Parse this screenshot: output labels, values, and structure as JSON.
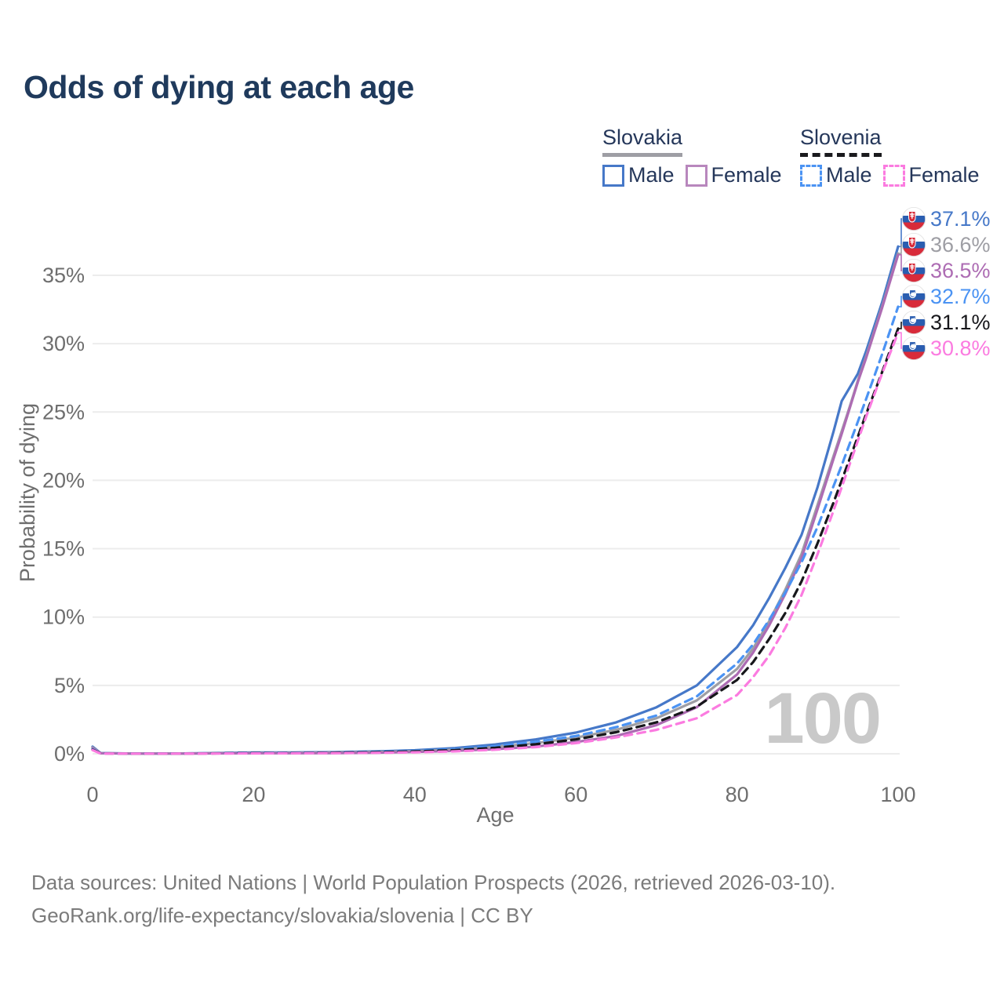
{
  "title": "Odds of dying at each age",
  "colors": {
    "title_text": "#1f3a5c",
    "legend_text": "#25375a",
    "grid": "#ececec",
    "axis_text": "#6e6e6e",
    "watermark": "#c9c9c9",
    "footer_text": "#7b7b7b"
  },
  "legend": {
    "groups": [
      {
        "country": "Slovakia",
        "line_style": "solid",
        "line_color": "#9e9ea4",
        "items": [
          {
            "label": "Male",
            "color": "#4678c8",
            "box_style": "solid"
          },
          {
            "label": "Female",
            "color": "#b887bd",
            "box_style": "solid"
          }
        ]
      },
      {
        "country": "Slovenia",
        "line_style": "dashed",
        "line_color": "#1a1a1d",
        "items": [
          {
            "label": "Male",
            "color": "#4b93f3",
            "box_style": "dashed"
          },
          {
            "label": "Female",
            "color": "#fb7be0",
            "box_style": "dashed"
          }
        ]
      }
    ]
  },
  "chart_data": {
    "type": "line",
    "title": "Odds of dying at each age",
    "xlabel": "Age",
    "ylabel": "Probability of dying",
    "xlim": [
      0,
      100
    ],
    "ylim": [
      0,
      37.5
    ],
    "x_ticks": [
      0,
      20,
      40,
      60,
      80,
      100
    ],
    "y_ticks": [
      0,
      5,
      10,
      15,
      20,
      25,
      30,
      35
    ],
    "y_tick_suffix": "%",
    "grid": "horizontal",
    "legend_position": "top-right",
    "watermark": "100",
    "x": [
      0,
      1,
      5,
      10,
      15,
      20,
      25,
      30,
      35,
      40,
      45,
      50,
      55,
      60,
      65,
      70,
      75,
      80,
      82,
      84,
      86,
      88,
      90,
      92,
      93,
      94,
      95,
      96,
      98,
      100
    ],
    "series": [
      {
        "id": "slovakia-male",
        "name": "Slovakia Male",
        "country": "Slovakia",
        "flag": "sk",
        "style": "solid",
        "color": "#4678c8",
        "end_label": "37.1%",
        "end_value": 37.1,
        "values": [
          0.52,
          0.05,
          0.02,
          0.02,
          0.05,
          0.09,
          0.1,
          0.12,
          0.17,
          0.26,
          0.42,
          0.68,
          1.05,
          1.55,
          2.3,
          3.4,
          5.0,
          7.8,
          9.4,
          11.4,
          13.6,
          16.0,
          19.5,
          23.6,
          25.8,
          26.8,
          27.8,
          29.4,
          33.0,
          37.1
        ]
      },
      {
        "id": "slovakia-total",
        "name": "Slovakia",
        "country": "Slovakia",
        "flag": "sk",
        "style": "solid",
        "color": "#9e9ea4",
        "end_label": "36.6%",
        "end_value": 36.6,
        "values": [
          0.46,
          0.04,
          0.02,
          0.02,
          0.04,
          0.06,
          0.07,
          0.09,
          0.13,
          0.19,
          0.31,
          0.5,
          0.78,
          1.18,
          1.75,
          2.6,
          3.9,
          6.2,
          7.7,
          9.7,
          12.0,
          14.6,
          18.2,
          21.8,
          23.6,
          25.4,
          27.3,
          29.0,
          32.7,
          36.6
        ]
      },
      {
        "id": "slovakia-female",
        "name": "Slovakia Female",
        "country": "Slovakia",
        "flag": "sk",
        "style": "solid",
        "color": "#ad6cb3",
        "end_label": "36.5%",
        "end_value": 36.5,
        "values": [
          0.4,
          0.04,
          0.01,
          0.01,
          0.03,
          0.04,
          0.04,
          0.05,
          0.08,
          0.13,
          0.21,
          0.34,
          0.53,
          0.86,
          1.3,
          2.1,
          3.4,
          5.8,
          7.4,
          9.4,
          11.7,
          14.3,
          17.9,
          21.6,
          23.4,
          25.3,
          27.2,
          28.9,
          32.6,
          36.5
        ]
      },
      {
        "id": "slovenia-male",
        "name": "Slovenia Male",
        "country": "Slovenia",
        "flag": "si",
        "style": "dashed",
        "color": "#4b93f3",
        "end_label": "32.7%",
        "end_value": 32.7,
        "values": [
          0.33,
          0.03,
          0.02,
          0.02,
          0.04,
          0.07,
          0.08,
          0.1,
          0.14,
          0.21,
          0.34,
          0.55,
          0.88,
          1.3,
          1.95,
          2.8,
          4.2,
          6.6,
          8.0,
          9.8,
          11.8,
          14.0,
          16.6,
          19.6,
          21.1,
          22.7,
          24.3,
          25.9,
          29.2,
          32.7
        ]
      },
      {
        "id": "slovenia-total",
        "name": "Slovenia",
        "country": "Slovenia",
        "flag": "si",
        "style": "dashed",
        "color": "#17171b",
        "end_label": "31.1%",
        "end_value": 31.1,
        "values": [
          0.3,
          0.03,
          0.01,
          0.01,
          0.03,
          0.05,
          0.06,
          0.08,
          0.11,
          0.17,
          0.27,
          0.44,
          0.7,
          1.05,
          1.58,
          2.3,
          3.45,
          5.4,
          6.7,
          8.4,
          10.3,
          12.6,
          15.4,
          18.4,
          20.0,
          21.6,
          23.2,
          24.8,
          27.9,
          31.1
        ]
      },
      {
        "id": "slovenia-female",
        "name": "Slovenia Female",
        "country": "Slovenia",
        "flag": "si",
        "style": "dashed",
        "color": "#fb7be0",
        "end_label": "30.8%",
        "end_value": 30.8,
        "values": [
          0.27,
          0.02,
          0.01,
          0.01,
          0.02,
          0.03,
          0.04,
          0.05,
          0.07,
          0.11,
          0.18,
          0.3,
          0.49,
          0.78,
          1.2,
          1.75,
          2.6,
          4.3,
          5.6,
          7.2,
          9.2,
          11.6,
          14.6,
          17.8,
          19.5,
          21.2,
          22.9,
          24.6,
          27.8,
          30.8
        ]
      }
    ]
  },
  "footer": {
    "line1": "Data sources: United Nations | World Population Prospects (2026, retrieved 2026-03-10).",
    "line2": "GeoRank.org/life-expectancy/slovakia/slovenia | CC BY"
  }
}
